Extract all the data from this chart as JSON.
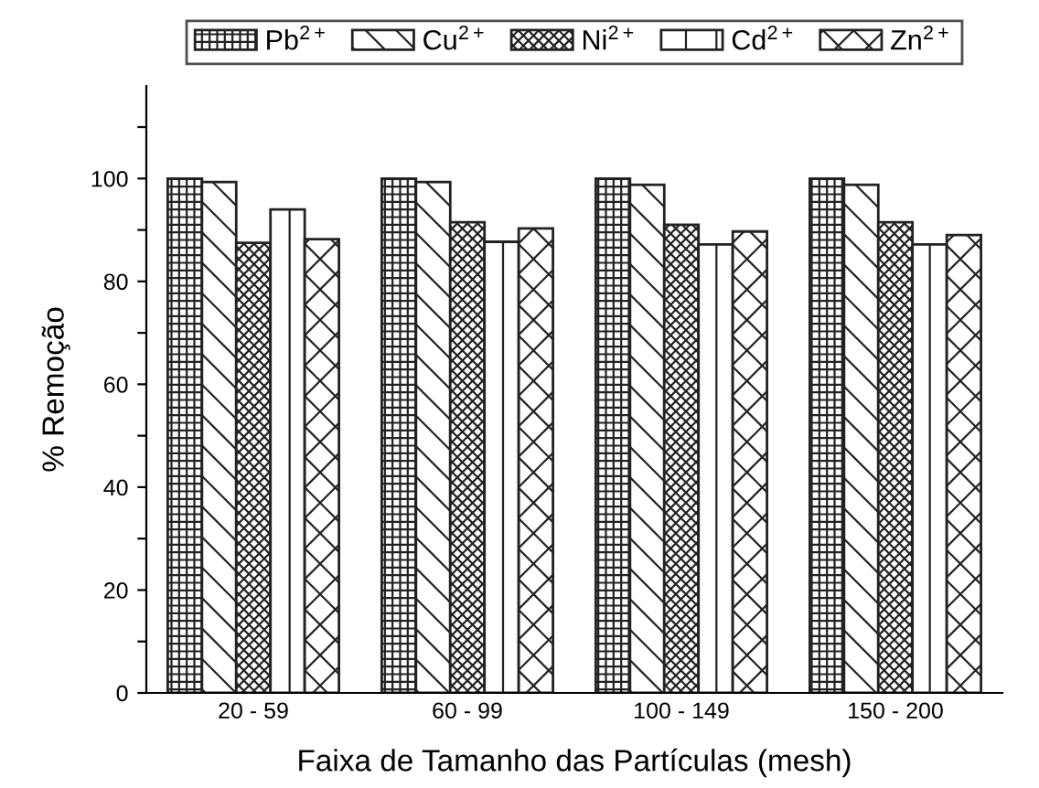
{
  "chart_data": {
    "type": "bar",
    "xlabel": "Faixa de Tamanho das Partículas (mesh)",
    "ylabel": "% Remoção",
    "categories": [
      "20 - 59",
      "60 - 99",
      "100 - 149",
      "150 - 200"
    ],
    "series": [
      {
        "name": "Pb$^{2+}$",
        "color": "#222222",
        "values": [
          100,
          100,
          100,
          100
        ]
      },
      {
        "name": "Cu$^{2+}$",
        "color": "#222222",
        "values": [
          99.3,
          99.3,
          98.8,
          98.8
        ]
      },
      {
        "name": "Ni$^{2+}$",
        "color": "#222222",
        "values": [
          87.5,
          91.5,
          91,
          91.5
        ]
      },
      {
        "name": "Cd$^{2+}$",
        "color": "#222222",
        "values": [
          94,
          87.7,
          87.2,
          87.2
        ]
      },
      {
        "name": "Zn$^{2+}$",
        "color": "#222222",
        "values": [
          88.2,
          90.3,
          89.7,
          89
        ]
      }
    ],
    "ylim": [
      0,
      118
    ],
    "yticks": [
      0,
      {
        "value": 10,
        "label": null
      },
      20,
      {
        "value": 30,
        "label": null
      },
      40,
      {
        "value": 50,
        "label": null
      },
      60,
      {
        "value": 70,
        "label": null
      },
      80,
      {
        "value": 90,
        "label": null
      },
      100,
      {
        "value": 110,
        "label": null
      }
    ],
    "grid": false,
    "legend": "top"
  }
}
